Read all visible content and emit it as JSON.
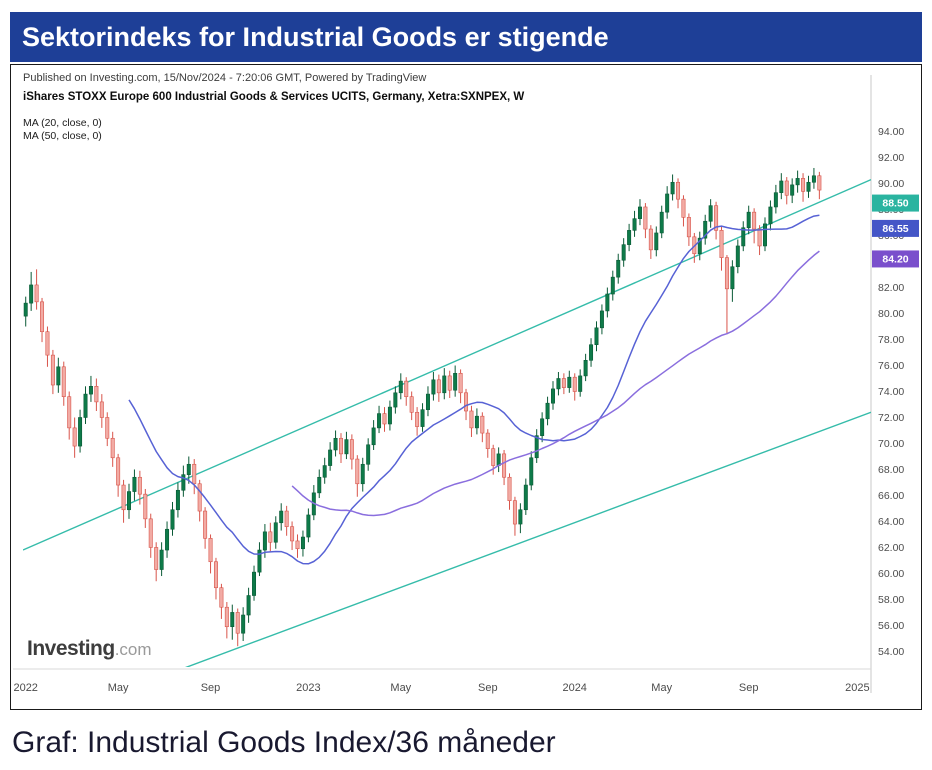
{
  "header": {
    "title": "Sektorindeks for Industrial Goods er stigende",
    "bg_color": "#1e3f97",
    "text_color": "#ffffff"
  },
  "caption": "Graf: Industrial Goods Index/36 måneder",
  "chart": {
    "published_line": "Published on Investing.com, 15/Nov/2024 - 7:20:06 GMT, Powered by TradingView",
    "instrument_line": "iShares STOXX Europe 600 Industrial Goods & Services UCITS, Germany, Xetra:SXNPEX, W",
    "ma_labels": [
      "MA (20, close, 0)",
      "MA (50, close, 0)"
    ],
    "logo": {
      "main": "Investing",
      "suffix": ".com"
    }
  },
  "chart_data": {
    "type": "candlestick",
    "instrument": "iShares STOXX Europe 600 Industrial Goods & Services UCITS",
    "exchange": "Xetra:SXNPEX",
    "timeframe": "W",
    "ylim": [
      52.8,
      96.2
    ],
    "y_ticks": [
      94,
      92,
      90,
      88,
      86,
      84,
      82,
      80,
      78,
      76,
      74,
      72,
      70,
      68,
      66,
      64,
      62,
      60,
      58,
      56,
      54
    ],
    "total_slots": 156,
    "x_labels": [
      {
        "label": "2022",
        "index": 0
      },
      {
        "label": "May",
        "index": 17
      },
      {
        "label": "Sep",
        "index": 34
      },
      {
        "label": "2023",
        "index": 52
      },
      {
        "label": "May",
        "index": 69
      },
      {
        "label": "Sep",
        "index": 85
      },
      {
        "label": "2024",
        "index": 101
      },
      {
        "label": "May",
        "index": 117
      },
      {
        "label": "Sep",
        "index": 133
      },
      {
        "label": "2025",
        "index": 153
      }
    ],
    "candles": [
      [
        79.8,
        81.3,
        79.0,
        80.8
      ],
      [
        80.8,
        83.2,
        80.2,
        82.2
      ],
      [
        82.2,
        83.4,
        80.3,
        80.9
      ],
      [
        80.9,
        81.2,
        77.8,
        78.6
      ],
      [
        78.6,
        79.0,
        75.9,
        76.8
      ],
      [
        76.8,
        77.2,
        73.8,
        74.5
      ],
      [
        74.5,
        76.6,
        73.9,
        75.9
      ],
      [
        75.9,
        76.3,
        72.9,
        73.6
      ],
      [
        73.6,
        74.0,
        70.3,
        71.2
      ],
      [
        71.2,
        72.0,
        68.9,
        69.8
      ],
      [
        69.8,
        72.6,
        69.3,
        72.0
      ],
      [
        72.0,
        74.4,
        71.5,
        73.8
      ],
      [
        73.8,
        75.2,
        73.2,
        74.4
      ],
      [
        74.4,
        75.0,
        72.5,
        73.2
      ],
      [
        73.2,
        73.8,
        71.2,
        72.0
      ],
      [
        72.0,
        72.4,
        69.8,
        70.4
      ],
      [
        70.4,
        70.9,
        68.2,
        68.9
      ],
      [
        68.9,
        69.2,
        65.9,
        66.8
      ],
      [
        66.8,
        67.2,
        63.9,
        64.9
      ],
      [
        64.9,
        66.9,
        64.2,
        66.3
      ],
      [
        66.3,
        68.0,
        65.6,
        67.4
      ],
      [
        67.4,
        67.9,
        65.3,
        66.1
      ],
      [
        66.1,
        66.5,
        63.5,
        64.2
      ],
      [
        64.2,
        64.6,
        61.2,
        62.0
      ],
      [
        62.0,
        62.4,
        59.4,
        60.3
      ],
      [
        60.3,
        62.4,
        59.8,
        61.8
      ],
      [
        61.8,
        64.0,
        61.2,
        63.4
      ],
      [
        63.4,
        65.5,
        62.9,
        64.9
      ],
      [
        64.9,
        67.0,
        64.3,
        66.4
      ],
      [
        66.4,
        68.3,
        65.9,
        67.6
      ],
      [
        67.6,
        69.0,
        66.9,
        68.4
      ],
      [
        68.4,
        68.8,
        66.1,
        66.9
      ],
      [
        66.9,
        67.2,
        64.0,
        64.8
      ],
      [
        64.8,
        65.1,
        61.9,
        62.7
      ],
      [
        62.7,
        63.0,
        60.0,
        60.9
      ],
      [
        60.9,
        61.2,
        58.0,
        58.9
      ],
      [
        58.9,
        59.2,
        56.5,
        57.4
      ],
      [
        57.4,
        57.8,
        55.0,
        55.9
      ],
      [
        55.9,
        57.6,
        54.9,
        57.0
      ],
      [
        57.0,
        57.3,
        54.4,
        55.4
      ],
      [
        55.4,
        57.4,
        54.8,
        56.8
      ],
      [
        56.8,
        58.9,
        56.2,
        58.3
      ],
      [
        58.3,
        60.6,
        57.9,
        60.1
      ],
      [
        60.1,
        62.4,
        59.8,
        61.8
      ],
      [
        61.8,
        63.8,
        61.2,
        63.2
      ],
      [
        63.2,
        63.9,
        61.7,
        62.4
      ],
      [
        62.4,
        64.4,
        61.9,
        63.9
      ],
      [
        63.9,
        65.4,
        63.3,
        64.8
      ],
      [
        64.8,
        65.2,
        62.9,
        63.6
      ],
      [
        63.6,
        64.0,
        61.8,
        62.5
      ],
      [
        62.5,
        63.0,
        61.2,
        61.9
      ],
      [
        61.9,
        63.3,
        61.3,
        62.8
      ],
      [
        62.8,
        65.0,
        62.4,
        64.5
      ],
      [
        64.5,
        66.8,
        64.1,
        66.2
      ],
      [
        66.2,
        68.0,
        65.8,
        67.4
      ],
      [
        67.4,
        68.9,
        66.9,
        68.3
      ],
      [
        68.3,
        70.1,
        67.9,
        69.5
      ],
      [
        69.5,
        71.0,
        69.0,
        70.4
      ],
      [
        70.4,
        70.8,
        68.5,
        69.2
      ],
      [
        69.2,
        70.9,
        68.8,
        70.3
      ],
      [
        70.3,
        70.7,
        68.0,
        68.8
      ],
      [
        68.8,
        69.1,
        65.9,
        66.9
      ],
      [
        66.9,
        68.9,
        66.3,
        68.4
      ],
      [
        68.4,
        70.4,
        67.9,
        69.9
      ],
      [
        69.9,
        71.8,
        69.5,
        71.2
      ],
      [
        71.2,
        72.9,
        70.8,
        72.3
      ],
      [
        72.3,
        72.8,
        70.9,
        71.5
      ],
      [
        71.5,
        73.3,
        71.0,
        72.8
      ],
      [
        72.8,
        74.4,
        72.3,
        73.9
      ],
      [
        73.9,
        75.4,
        73.4,
        74.8
      ],
      [
        74.8,
        75.1,
        72.9,
        73.6
      ],
      [
        73.6,
        74.0,
        71.8,
        72.4
      ],
      [
        72.4,
        72.8,
        70.6,
        71.3
      ],
      [
        71.3,
        73.1,
        70.9,
        72.6
      ],
      [
        72.6,
        74.4,
        72.1,
        73.8
      ],
      [
        73.8,
        75.5,
        73.3,
        74.9
      ],
      [
        74.9,
        75.3,
        73.2,
        73.9
      ],
      [
        73.9,
        75.8,
        73.4,
        75.2
      ],
      [
        75.2,
        75.6,
        73.5,
        74.1
      ],
      [
        74.1,
        76.0,
        73.6,
        75.4
      ],
      [
        75.4,
        75.7,
        73.1,
        73.9
      ],
      [
        73.9,
        74.2,
        71.8,
        72.5
      ],
      [
        72.5,
        72.9,
        70.5,
        71.2
      ],
      [
        71.2,
        72.7,
        70.7,
        72.1
      ],
      [
        72.1,
        72.4,
        70.1,
        70.8
      ],
      [
        70.8,
        71.1,
        68.9,
        69.6
      ],
      [
        69.6,
        69.9,
        67.6,
        68.3
      ],
      [
        68.3,
        69.7,
        67.8,
        69.2
      ],
      [
        69.2,
        69.5,
        66.8,
        67.4
      ],
      [
        67.4,
        67.7,
        64.9,
        65.6
      ],
      [
        65.6,
        65.9,
        62.9,
        63.8
      ],
      [
        63.8,
        65.4,
        63.1,
        64.9
      ],
      [
        64.9,
        67.3,
        64.5,
        66.8
      ],
      [
        66.8,
        69.4,
        66.4,
        68.9
      ],
      [
        68.9,
        71.1,
        68.5,
        70.6
      ],
      [
        70.6,
        72.4,
        70.1,
        71.9
      ],
      [
        71.9,
        73.6,
        71.4,
        73.1
      ],
      [
        73.1,
        74.8,
        72.6,
        74.2
      ],
      [
        74.2,
        75.5,
        73.7,
        75.0
      ],
      [
        75.0,
        75.4,
        73.8,
        74.3
      ],
      [
        74.3,
        75.6,
        73.9,
        75.1
      ],
      [
        75.1,
        75.4,
        73.3,
        74.0
      ],
      [
        74.0,
        75.7,
        73.6,
        75.2
      ],
      [
        75.2,
        76.9,
        74.8,
        76.4
      ],
      [
        76.4,
        78.1,
        75.9,
        77.6
      ],
      [
        77.6,
        79.4,
        77.1,
        78.9
      ],
      [
        78.9,
        80.7,
        78.4,
        80.2
      ],
      [
        80.2,
        82.0,
        79.7,
        81.5
      ],
      [
        81.5,
        83.3,
        81.0,
        82.8
      ],
      [
        82.8,
        84.6,
        82.3,
        84.1
      ],
      [
        84.1,
        85.8,
        83.6,
        85.3
      ],
      [
        85.3,
        86.9,
        84.8,
        86.4
      ],
      [
        86.4,
        87.9,
        85.9,
        87.3
      ],
      [
        87.3,
        88.8,
        86.8,
        88.2
      ],
      [
        88.2,
        88.5,
        85.8,
        86.5
      ],
      [
        86.5,
        86.8,
        84.2,
        84.9
      ],
      [
        84.9,
        86.7,
        84.4,
        86.2
      ],
      [
        86.2,
        88.3,
        85.8,
        87.8
      ],
      [
        87.8,
        89.8,
        87.3,
        89.2
      ],
      [
        89.2,
        90.7,
        88.7,
        90.1
      ],
      [
        90.1,
        90.4,
        88.1,
        88.8
      ],
      [
        88.8,
        89.1,
        86.7,
        87.4
      ],
      [
        87.4,
        87.7,
        85.2,
        85.9
      ],
      [
        85.9,
        86.2,
        83.9,
        84.6
      ],
      [
        84.6,
        86.3,
        84.1,
        85.8
      ],
      [
        85.8,
        87.6,
        85.3,
        87.1
      ],
      [
        87.1,
        88.8,
        86.6,
        88.3
      ],
      [
        88.3,
        88.6,
        85.7,
        86.4
      ],
      [
        86.4,
        86.7,
        83.3,
        84.3
      ],
      [
        84.3,
        84.5,
        78.4,
        81.9
      ],
      [
        81.9,
        84.1,
        80.9,
        83.6
      ],
      [
        83.6,
        85.7,
        83.1,
        85.2
      ],
      [
        85.2,
        87.1,
        84.8,
        86.6
      ],
      [
        86.6,
        88.3,
        86.1,
        87.8
      ],
      [
        87.8,
        88.1,
        85.4,
        86.5
      ],
      [
        86.5,
        86.8,
        84.5,
        85.2
      ],
      [
        85.2,
        87.4,
        84.8,
        86.9
      ],
      [
        86.9,
        88.7,
        86.4,
        88.2
      ],
      [
        88.2,
        89.9,
        87.7,
        89.3
      ],
      [
        89.3,
        90.8,
        88.8,
        90.2
      ],
      [
        90.2,
        90.5,
        88.4,
        89.1
      ],
      [
        89.1,
        90.4,
        88.5,
        89.9
      ],
      [
        89.9,
        91.0,
        89.3,
        90.4
      ],
      [
        90.4,
        90.8,
        88.6,
        89.4
      ],
      [
        89.4,
        90.6,
        88.9,
        90.1
      ],
      [
        90.1,
        91.2,
        89.6,
        90.6
      ],
      [
        90.6,
        90.9,
        88.8,
        89.5
      ]
    ],
    "moving_averages": [
      {
        "name": "MA20",
        "period": 20,
        "color": "#5762d5",
        "last_value": 86.55
      },
      {
        "name": "MA50",
        "period": 50,
        "color": "#8a6ede",
        "last_value": 84.2
      }
    ],
    "trendlines": [
      {
        "name": "channel-upper",
        "from_slot": 0,
        "from_value": 61.8,
        "to_slot": 156,
        "to_value": 90.3,
        "color": "#35bcaa",
        "last_value": 88.5
      },
      {
        "name": "channel-lower",
        "from_slot": 0,
        "from_value": 48.1,
        "to_slot": 156,
        "to_value": 72.4,
        "color": "#35bcaa"
      }
    ],
    "price_tags": [
      {
        "label": "88.50",
        "value": 88.5,
        "color": "#2ab4a0"
      },
      {
        "label": "86.55",
        "value": 86.55,
        "color": "#4456c7"
      },
      {
        "label": "84.20",
        "value": 84.2,
        "color": "#7a4fcc"
      }
    ],
    "colors": {
      "up_fill": "#0e7a49",
      "up_stroke": "#0a5a36",
      "down_fill": "#f2aba4",
      "down_stroke": "#d8544a",
      "axis_text": "#4c4c4c",
      "axis_line": "#c9c9c9"
    }
  }
}
